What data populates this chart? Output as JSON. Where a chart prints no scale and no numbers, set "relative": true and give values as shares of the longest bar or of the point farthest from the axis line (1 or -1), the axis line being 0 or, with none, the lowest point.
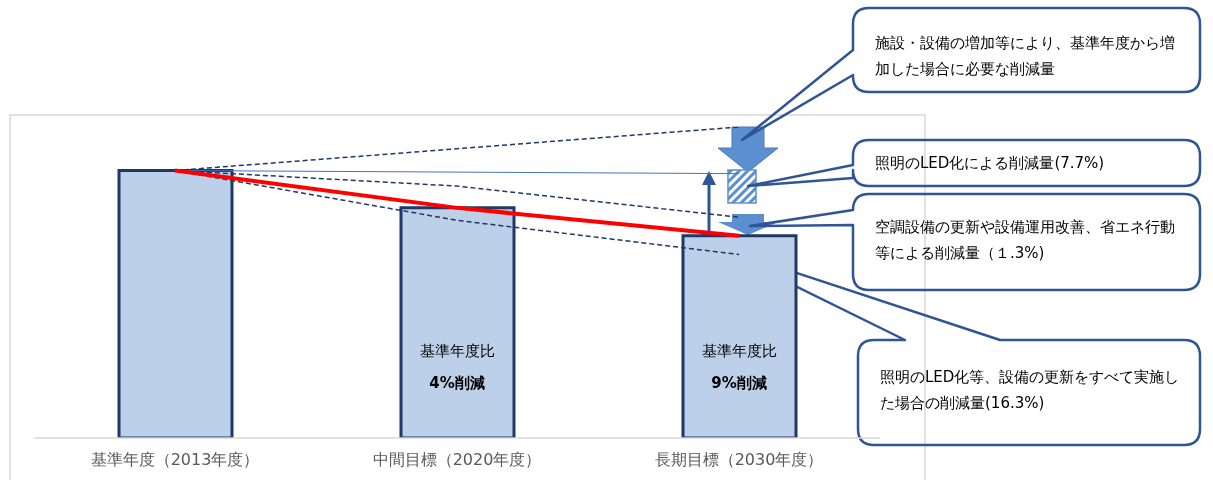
{
  "chart_data": {
    "type": "bar",
    "relative": true,
    "categories": [
      "基準年度（2013年度）",
      "中間目標（2020年度）",
      "長期目標（2030年度）"
    ],
    "series": [
      {
        "color": "#bdd0e9",
        "values": [
          0.86,
          0.74,
          0.65
        ]
      },
      {
        "type": "line",
        "color": "#1f3864",
        "line_style": "dashed",
        "values": [
          0.86,
          null,
          1
        ]
      },
      {
        "type": "line",
        "color": "#4472c4",
        "line_style": "solid",
        "values": [
          0.86,
          null,
          0.85
        ]
      },
      {
        "type": "line",
        "color": "#1f3864",
        "line_style": "dashed",
        "values": [
          0.86,
          0.81,
          0.71
        ]
      },
      {
        "type": "line",
        "color": "#1f3864",
        "line_style": "dashed",
        "values": [
          0.86,
          0.7,
          0.59
        ]
      },
      {
        "type": "line",
        "color": "#ff0000",
        "line_style": "solid",
        "values": [
          0.86,
          0.74,
          0.65
        ]
      }
    ],
    "annotations": [
      "施設・設備の増加等により、基準年度から増加した場合に必要な削減量",
      "照明のLED化による削減量(7.7%)",
      "空調設備の更新や設備運用改善、省エネ行動等による削減量（１.3%)",
      "照明のLED化等、設備の更新をすべて実施した場合の削減量(16.3%)",
      "基準年度比",
      "4%削減",
      "基準年度比",
      "9%削減"
    ]
  }
}
